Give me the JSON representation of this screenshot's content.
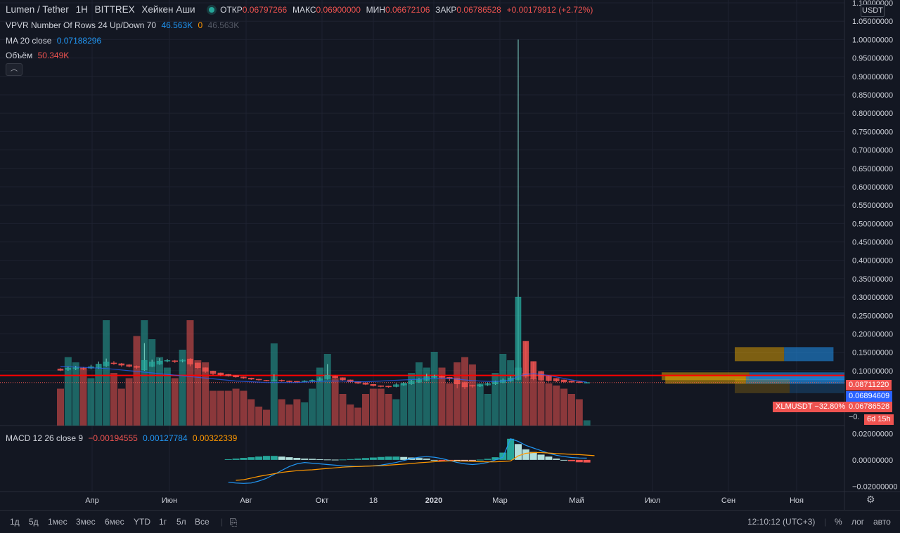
{
  "header": {
    "symbol": "Lumen / Tether",
    "interval": "1H",
    "exchange": "BITTREX",
    "chart_style": "Хейкен Аши",
    "ohlc": {
      "open_label": "ОТКР",
      "open": "0.06797266",
      "high_label": "МАКС",
      "high": "0.06900000",
      "low_label": "МИН",
      "low": "0.06672106",
      "close_label": "ЗАКР",
      "close": "0.06786528",
      "change": "+0.00179912 (+2.72%)"
    }
  },
  "indicators": {
    "vpvr": {
      "label": "VPVR Number Of Rows 24 Up/Down 70",
      "up": "46.563K",
      "zero": "0",
      "total": "46.563K"
    },
    "ma": {
      "label": "MA 20 close",
      "value": "0.07188296"
    },
    "volume": {
      "label": "Объём",
      "value": "50.349K"
    },
    "macd": {
      "label": "MACD 12 26 close 9",
      "hist": "−0.00194555",
      "macd": "0.00127784",
      "signal": "0.00322339"
    }
  },
  "currency_button": "USDT",
  "price_axis": {
    "ticks": [
      "1.10000000",
      "1.05000000",
      "1.00000000",
      "0.95000000",
      "0.90000000",
      "0.85000000",
      "0.80000000",
      "0.75000000",
      "0.70000000",
      "0.65000000",
      "0.60000000",
      "0.55000000",
      "0.50000000",
      "0.45000000",
      "0.40000000",
      "0.35000000",
      "0.30000000",
      "0.25000000",
      "0.20000000",
      "0.15000000",
      "0.10000000"
    ],
    "tags": {
      "red_line": "0.08711220",
      "ma": "0.06894609",
      "compare": "XLMUSDT −32.80%",
      "last": "0.06786528",
      "neg": "−0.",
      "countdown": "6d 15h"
    },
    "macd_ticks": [
      "0.02000000",
      "0.00000000",
      "−0.02000000"
    ]
  },
  "time_axis": [
    "Апр",
    "Июн",
    "Авг",
    "Окт",
    "18",
    "2020",
    "Мар",
    "Май",
    "Июл",
    "Сен",
    "Ноя"
  ],
  "toolbar": {
    "timeframes": [
      "1д",
      "5д",
      "1мес",
      "3мес",
      "6мес",
      "YTD",
      "1г",
      "5л",
      "Все"
    ],
    "clock": "12:10:12 (UTC+3)",
    "percent": "%",
    "log": "лог",
    "auto": "авто"
  },
  "colors": {
    "up": "#26a69a",
    "down": "#ef5350",
    "ma": "#2962ff",
    "signal": "#ff9800",
    "bg": "#131722",
    "grid": "#1e2230"
  },
  "chart_data": {
    "type": "candlestick",
    "style": "heikin-ashi",
    "ylim": [
      -0.03,
      1.1
    ],
    "candles": [
      {
        "t": "Мар",
        "o": 0.105,
        "c": 0.101,
        "h": 0.107,
        "l": 0.099
      },
      {
        "t": "",
        "o": 0.103,
        "c": 0.107,
        "h": 0.112,
        "l": 0.1
      },
      {
        "t": "",
        "o": 0.105,
        "c": 0.108,
        "h": 0.113,
        "l": 0.102
      },
      {
        "t": "",
        "o": 0.106,
        "c": 0.105,
        "h": 0.11,
        "l": 0.102
      },
      {
        "t": "",
        "o": 0.107,
        "c": 0.111,
        "h": 0.116,
        "l": 0.104
      },
      {
        "t": "Апр",
        "o": 0.108,
        "c": 0.118,
        "h": 0.125,
        "l": 0.105
      },
      {
        "t": "",
        "o": 0.114,
        "c": 0.124,
        "h": 0.133,
        "l": 0.111
      },
      {
        "t": "",
        "o": 0.121,
        "c": 0.119,
        "h": 0.126,
        "l": 0.116
      },
      {
        "t": "",
        "o": 0.119,
        "c": 0.115,
        "h": 0.121,
        "l": 0.111
      },
      {
        "t": "",
        "o": 0.116,
        "c": 0.112,
        "h": 0.118,
        "l": 0.109
      },
      {
        "t": "",
        "o": 0.112,
        "c": 0.109,
        "h": 0.114,
        "l": 0.105
      },
      {
        "t": "",
        "o": 0.102,
        "c": 0.128,
        "h": 0.175,
        "l": 0.1
      },
      {
        "t": "",
        "o": 0.112,
        "c": 0.124,
        "h": 0.13,
        "l": 0.11
      },
      {
        "t": "",
        "o": 0.118,
        "c": 0.126,
        "h": 0.134,
        "l": 0.116
      },
      {
        "t": "Июн",
        "o": 0.126,
        "c": 0.128,
        "h": 0.132,
        "l": 0.123
      },
      {
        "t": "",
        "o": 0.127,
        "c": 0.125,
        "h": 0.129,
        "l": 0.121
      },
      {
        "t": "",
        "o": 0.126,
        "c": 0.129,
        "h": 0.131,
        "l": 0.123
      },
      {
        "t": "",
        "o": 0.132,
        "c": 0.118,
        "h": 0.134,
        "l": 0.112
      },
      {
        "t": "",
        "o": 0.121,
        "c": 0.108,
        "h": 0.122,
        "l": 0.104
      },
      {
        "t": "",
        "o": 0.108,
        "c": 0.098,
        "h": 0.109,
        "l": 0.094
      },
      {
        "t": "",
        "o": 0.099,
        "c": 0.092,
        "h": 0.1,
        "l": 0.088
      },
      {
        "t": "",
        "o": 0.094,
        "c": 0.089,
        "h": 0.095,
        "l": 0.086
      },
      {
        "t": "Авг",
        "o": 0.09,
        "c": 0.086,
        "h": 0.091,
        "l": 0.084
      },
      {
        "t": "",
        "o": 0.087,
        "c": 0.083,
        "h": 0.088,
        "l": 0.081
      },
      {
        "t": "",
        "o": 0.083,
        "c": 0.08,
        "h": 0.084,
        "l": 0.078
      },
      {
        "t": "",
        "o": 0.08,
        "c": 0.077,
        "h": 0.081,
        "l": 0.075
      },
      {
        "t": "",
        "o": 0.077,
        "c": 0.075,
        "h": 0.078,
        "l": 0.073
      },
      {
        "t": "",
        "o": 0.074,
        "c": 0.073,
        "h": 0.075,
        "l": 0.071
      },
      {
        "t": "",
        "o": 0.073,
        "c": 0.075,
        "h": 0.09,
        "l": 0.071
      },
      {
        "t": "",
        "o": 0.074,
        "c": 0.072,
        "h": 0.076,
        "l": 0.07
      },
      {
        "t": "Окт",
        "o": 0.072,
        "c": 0.07,
        "h": 0.073,
        "l": 0.068
      },
      {
        "t": "",
        "o": 0.071,
        "c": 0.07,
        "h": 0.072,
        "l": 0.068
      },
      {
        "t": "",
        "o": 0.071,
        "c": 0.072,
        "h": 0.074,
        "l": 0.069
      },
      {
        "t": "",
        "o": 0.072,
        "c": 0.074,
        "h": 0.076,
        "l": 0.07
      },
      {
        "t": "",
        "o": 0.074,
        "c": 0.078,
        "h": 0.082,
        "l": 0.072
      },
      {
        "t": "18",
        "o": 0.078,
        "c": 0.088,
        "h": 0.118,
        "l": 0.076
      },
      {
        "t": "",
        "o": 0.085,
        "c": 0.081,
        "h": 0.087,
        "l": 0.078
      },
      {
        "t": "",
        "o": 0.081,
        "c": 0.075,
        "h": 0.082,
        "l": 0.073
      },
      {
        "t": "",
        "o": 0.075,
        "c": 0.07,
        "h": 0.076,
        "l": 0.068
      },
      {
        "t": "",
        "o": 0.07,
        "c": 0.066,
        "h": 0.071,
        "l": 0.064
      },
      {
        "t": "",
        "o": 0.067,
        "c": 0.063,
        "h": 0.068,
        "l": 0.061
      },
      {
        "t": "",
        "o": 0.063,
        "c": 0.059,
        "h": 0.064,
        "l": 0.057
      },
      {
        "t": "",
        "o": 0.059,
        "c": 0.057,
        "h": 0.06,
        "l": 0.055
      },
      {
        "t": "2020",
        "o": 0.058,
        "c": 0.056,
        "h": 0.059,
        "l": 0.054
      },
      {
        "t": "",
        "o": 0.057,
        "c": 0.062,
        "h": 0.066,
        "l": 0.055
      },
      {
        "t": "",
        "o": 0.061,
        "c": 0.066,
        "h": 0.069,
        "l": 0.059
      },
      {
        "t": "",
        "o": 0.064,
        "c": 0.072,
        "h": 0.075,
        "l": 0.062
      },
      {
        "t": "",
        "o": 0.069,
        "c": 0.076,
        "h": 0.08,
        "l": 0.067
      },
      {
        "t": "",
        "o": 0.074,
        "c": 0.084,
        "h": 0.092,
        "l": 0.072
      },
      {
        "t": "",
        "o": 0.082,
        "c": 0.086,
        "h": 0.089,
        "l": 0.079
      },
      {
        "t": "Мар",
        "o": 0.085,
        "c": 0.082,
        "h": 0.087,
        "l": 0.078
      },
      {
        "t": "",
        "o": 0.082,
        "c": 0.078,
        "h": 0.083,
        "l": 0.072
      },
      {
        "t": "",
        "o": 0.079,
        "c": 0.064,
        "h": 0.08,
        "l": 0.052
      },
      {
        "t": "",
        "o": 0.068,
        "c": 0.056,
        "h": 0.07,
        "l": 0.05
      },
      {
        "t": "",
        "o": 0.06,
        "c": 0.058,
        "h": 0.062,
        "l": 0.054
      },
      {
        "t": "",
        "o": 0.058,
        "c": 0.062,
        "h": 0.064,
        "l": 0.056
      },
      {
        "t": "",
        "o": 0.061,
        "c": 0.065,
        "h": 0.068,
        "l": 0.059
      },
      {
        "t": "",
        "o": 0.064,
        "c": 0.07,
        "h": 0.073,
        "l": 0.062
      },
      {
        "t": "",
        "o": 0.068,
        "c": 0.075,
        "h": 0.079,
        "l": 0.066
      },
      {
        "t": "",
        "o": 0.072,
        "c": 0.08,
        "h": 0.085,
        "l": 0.07
      },
      {
        "t": "Май",
        "o": 0.076,
        "c": 0.3,
        "h": 1.0,
        "l": 0.074
      },
      {
        "t": "",
        "o": 0.18,
        "c": 0.085,
        "h": 0.18,
        "l": 0.08
      },
      {
        "t": "",
        "o": 0.125,
        "c": 0.078,
        "h": 0.125,
        "l": 0.074
      },
      {
        "t": "",
        "o": 0.098,
        "c": 0.074,
        "h": 0.1,
        "l": 0.071
      },
      {
        "t": "",
        "o": 0.085,
        "c": 0.073,
        "h": 0.087,
        "l": 0.07
      },
      {
        "t": "",
        "o": 0.079,
        "c": 0.072,
        "h": 0.08,
        "l": 0.069
      },
      {
        "t": "",
        "o": 0.075,
        "c": 0.07,
        "h": 0.076,
        "l": 0.067
      },
      {
        "t": "",
        "o": 0.072,
        "c": 0.069,
        "h": 0.073,
        "l": 0.067
      },
      {
        "t": "",
        "o": 0.07,
        "c": 0.068,
        "h": 0.071,
        "l": 0.066
      },
      {
        "t": "Июл",
        "o": 0.068,
        "c": 0.068,
        "h": 0.069,
        "l": 0.067
      }
    ],
    "volume": [
      0.35,
      0.65,
      0.6,
      0.55,
      0.45,
      0.55,
      1.0,
      0.5,
      0.35,
      0.45,
      0.85,
      1.0,
      0.82,
      0.65,
      0.55,
      0.45,
      0.72,
      1.0,
      0.62,
      0.6,
      0.33,
      0.33,
      0.33,
      0.35,
      0.33,
      0.25,
      0.18,
      0.15,
      0.78,
      0.25,
      0.2,
      0.25,
      0.22,
      0.35,
      0.55,
      0.68,
      0.45,
      0.3,
      0.2,
      0.17,
      0.3,
      0.35,
      0.35,
      0.3,
      0.25,
      0.4,
      0.5,
      0.6,
      0.55,
      0.7,
      0.55,
      0.4,
      0.6,
      0.65,
      0.58,
      0.4,
      0.3,
      0.5,
      0.68,
      0.62,
      0.55,
      0.5,
      0.45,
      0.42,
      0.4,
      0.38,
      0.35,
      0.3,
      0.25,
      0.05
    ],
    "ma": [
      0.112,
      0.111,
      0.11,
      0.109,
      0.108,
      0.107,
      0.106,
      0.104,
      0.102,
      0.1,
      0.098,
      0.096,
      0.094,
      0.092,
      0.09,
      0.088,
      0.086,
      0.084,
      0.082,
      0.08,
      0.078,
      0.076,
      0.074,
      0.072,
      0.071,
      0.07,
      0.069,
      0.068,
      0.068,
      0.068,
      0.068,
      0.068,
      0.069,
      0.07,
      0.071,
      0.072,
      0.072,
      0.072,
      0.071,
      0.07,
      0.07,
      0.071,
      0.072,
      0.073,
      0.074,
      0.075,
      0.076,
      0.077,
      0.078,
      0.079,
      0.08,
      0.079,
      0.077,
      0.075,
      0.073,
      0.072,
      0.071,
      0.071,
      0.072,
      0.074,
      0.085,
      0.09,
      0.092,
      0.09,
      0.087,
      0.083,
      0.079,
      0.075,
      0.072,
      0.069
    ],
    "macd_hist": [
      0.0005,
      0.001,
      0.0015,
      0.002,
      0.0025,
      0.003,
      0.003,
      0.0025,
      0.002,
      0.0015,
      0.001,
      0.0008,
      0.0005,
      0.0003,
      0.0002,
      0.0003,
      0.0006,
      0.001,
      0.0014,
      0.0018,
      0.0022,
      0.0025,
      0.0025,
      0.0022,
      0.0018,
      0.0014,
      0.001,
      0.0,
      -0.0008,
      -0.001,
      -0.0008,
      -0.0005,
      -0.0003,
      0.0002,
      0.0008,
      0.002,
      0.0055,
      0.016,
      0.012,
      0.008,
      0.006,
      0.004,
      0.0025,
      0.001,
      0.0,
      -0.001,
      -0.0018,
      -0.002
    ],
    "macd_line": [
      -0.017,
      -0.0175,
      -0.0178,
      -0.0175,
      -0.016,
      -0.014,
      -0.011,
      -0.008,
      -0.005,
      -0.003,
      -0.002,
      -0.0025,
      -0.003,
      -0.0035,
      -0.004,
      -0.0045,
      -0.0048,
      -0.005,
      -0.0048,
      -0.0045,
      -0.004,
      -0.003,
      -0.002,
      -0.0005,
      0.001,
      0.002,
      0.0025,
      0.002,
      0.001,
      -0.0005,
      -0.002,
      -0.003,
      -0.0035,
      -0.003,
      -0.002,
      0.0,
      0.002,
      0.016,
      0.014,
      0.011,
      0.009,
      0.007,
      0.005,
      0.0035,
      0.0025,
      0.0018,
      0.0014,
      0.0013
    ],
    "macd_signal": [
      -0.0155,
      -0.015,
      -0.0138,
      -0.0125,
      -0.0115,
      -0.0105,
      -0.0095,
      -0.0088,
      -0.0082,
      -0.0078,
      -0.0075,
      -0.007,
      -0.0065,
      -0.006,
      -0.0055,
      -0.0052,
      -0.005,
      -0.0048,
      -0.0046,
      -0.0044,
      -0.004,
      -0.0036,
      -0.0032,
      -0.0028,
      -0.0022,
      -0.0018,
      -0.0014,
      -0.001,
      -0.0008,
      -0.0008,
      -0.001,
      -0.0012,
      -0.0014,
      -0.0015,
      -0.0015,
      -0.0012,
      -0.0008,
      0.003,
      0.005,
      0.0055,
      0.0055,
      0.0052,
      0.0048,
      0.0045,
      0.0042,
      0.004,
      0.0036,
      0.0032
    ],
    "vpvr_rows": [
      {
        "price": 0.145,
        "up": 0.45,
        "down": 0.45
      },
      {
        "price": 0.085,
        "up": 0.48,
        "down": 0.52
      },
      {
        "price": 0.075,
        "up": 0.45,
        "down": 0.55
      },
      {
        "price": 0.058,
        "up": 0.5,
        "down": 0.5
      }
    ]
  }
}
